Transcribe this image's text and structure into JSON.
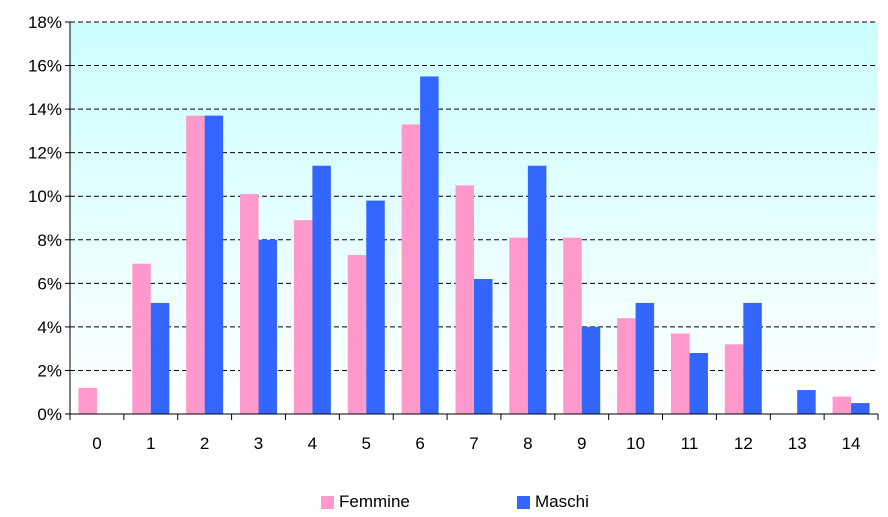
{
  "chart_data": {
    "type": "bar",
    "categories": [
      "0",
      "1",
      "2",
      "3",
      "4",
      "5",
      "6",
      "7",
      "8",
      "9",
      "10",
      "11",
      "12",
      "13",
      "14"
    ],
    "series": [
      {
        "name": "Femmine",
        "color": "#ff99cc",
        "values": [
          1.2,
          6.9,
          13.7,
          10.1,
          8.9,
          7.3,
          13.3,
          10.5,
          8.1,
          8.1,
          4.4,
          3.7,
          3.2,
          0,
          0.8
        ]
      },
      {
        "name": "Maschi",
        "color": "#3366ff",
        "values": [
          0,
          5.1,
          13.7,
          8.0,
          11.4,
          9.8,
          15.5,
          6.2,
          11.4,
          4.0,
          5.1,
          2.8,
          5.1,
          1.1,
          0.5
        ]
      }
    ],
    "y_ticks": [
      "0%",
      "2%",
      "4%",
      "6%",
      "8%",
      "10%",
      "12%",
      "14%",
      "16%",
      "18%"
    ],
    "ylim": [
      0,
      18
    ],
    "grid": true,
    "legend_position": "bottom",
    "plot_background": [
      "#ccffff",
      "#ffffff"
    ]
  }
}
